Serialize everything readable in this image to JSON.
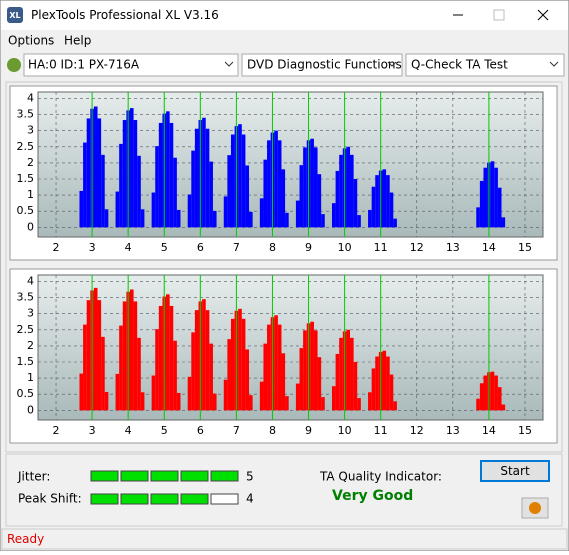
{
  "window": {
    "title": "PlexTools Professional XL V3.16"
  },
  "menu": [
    "Options",
    "Help"
  ],
  "toolbar": [
    "HA:0 ID:1  PX-716A",
    "DVD Diagnostic Functions",
    "Q-Check TA Test"
  ],
  "chart_data": [
    {
      "type": "bar",
      "color": "#0000ff",
      "x": [
        2.7,
        2.8,
        2.9,
        3,
        3.1,
        3.2,
        3.3,
        3.4,
        3.7,
        3.8,
        3.9,
        4,
        4.1,
        4.2,
        4.3,
        4.4,
        4.7,
        4.8,
        4.9,
        5,
        5.1,
        5.2,
        5.3,
        5.4,
        5.7,
        5.8,
        5.9,
        6,
        6.1,
        6.2,
        6.3,
        6.4,
        6.7,
        6.8,
        6.9,
        7,
        7.1,
        7.2,
        7.3,
        7.4,
        7.7,
        7.8,
        7.9,
        8,
        8.1,
        8.2,
        8.3,
        8.4,
        8.7,
        8.8,
        8.9,
        9,
        9.1,
        9.2,
        9.3,
        9.4,
        9.7,
        9.8,
        9.9,
        10,
        10.1,
        10.2,
        10.3,
        10.4,
        10.7,
        10.8,
        10.9,
        11,
        11.1,
        11.2,
        11.3,
        11.4,
        13.7,
        13.8,
        13.9,
        14,
        14.1,
        14.2,
        14.3,
        14.4
      ],
      "values": [
        1.13,
        2.63,
        3.38,
        3.68,
        3.75,
        3.38,
        2.25,
        0.56,
        1.11,
        2.59,
        3.33,
        3.63,
        3.7,
        3.33,
        2.22,
        0.56,
        1.08,
        2.52,
        3.24,
        3.53,
        3.6,
        3.24,
        2.16,
        0.54,
        1.02,
        2.38,
        3.06,
        3.33,
        3.4,
        3.06,
        2.04,
        0.51,
        0.96,
        2.24,
        2.88,
        3.14,
        3.2,
        2.88,
        1.92,
        0.48,
        0.9,
        2.1,
        2.7,
        2.94,
        3.0,
        2.7,
        1.8,
        0.45,
        0.83,
        1.93,
        2.48,
        2.7,
        2.75,
        2.48,
        1.65,
        0.41,
        0.75,
        1.75,
        2.25,
        2.45,
        2.5,
        2.25,
        1.5,
        0.38,
        0.54,
        1.26,
        1.62,
        1.76,
        1.8,
        1.62,
        1.08,
        0.27,
        0.62,
        1.44,
        1.85,
        2.01,
        2.05,
        1.85,
        1.23,
        0.31
      ],
      "markers": [
        3,
        4,
        5,
        6,
        7,
        8,
        9,
        10,
        11,
        14
      ],
      "marker_color": "#00d000",
      "xlim": [
        1.5,
        15.5
      ],
      "ylim": [
        -0.3,
        4.2
      ],
      "xticks": [
        2,
        3,
        4,
        5,
        6,
        7,
        8,
        9,
        10,
        11,
        12,
        13,
        14,
        15
      ],
      "yticks": [
        0,
        0.5,
        1,
        1.5,
        2,
        2.5,
        3,
        3.5,
        4
      ],
      "grid": true
    },
    {
      "type": "bar",
      "color": "#ff0000",
      "x": [
        2.7,
        2.8,
        2.9,
        3,
        3.1,
        3.2,
        3.3,
        3.4,
        3.7,
        3.8,
        3.9,
        4,
        4.1,
        4.2,
        4.3,
        4.4,
        4.7,
        4.8,
        4.9,
        5,
        5.1,
        5.2,
        5.3,
        5.4,
        5.7,
        5.8,
        5.9,
        6,
        6.1,
        6.2,
        6.3,
        6.4,
        6.7,
        6.8,
        6.9,
        7,
        7.1,
        7.2,
        7.3,
        7.4,
        7.7,
        7.8,
        7.9,
        8,
        8.1,
        8.2,
        8.3,
        8.4,
        8.7,
        8.8,
        8.9,
        9,
        9.1,
        9.2,
        9.3,
        9.4,
        9.7,
        9.8,
        9.9,
        10,
        10.1,
        10.2,
        10.3,
        10.4,
        10.7,
        10.8,
        10.9,
        11,
        11.1,
        11.2,
        11.3,
        11.4,
        13.7,
        13.8,
        13.9,
        14,
        14.1,
        14.2,
        14.3,
        14.4
      ],
      "values": [
        1.14,
        2.66,
        3.42,
        3.72,
        3.8,
        3.42,
        2.28,
        0.57,
        1.13,
        2.63,
        3.38,
        3.68,
        3.75,
        3.38,
        2.25,
        0.56,
        1.08,
        2.52,
        3.24,
        3.53,
        3.6,
        3.24,
        2.16,
        0.54,
        1.04,
        2.42,
        3.11,
        3.38,
        3.45,
        3.11,
        2.07,
        0.52,
        0.95,
        2.21,
        2.84,
        3.09,
        3.15,
        2.84,
        1.89,
        0.47,
        0.89,
        2.07,
        2.66,
        2.89,
        2.95,
        2.66,
        1.77,
        0.44,
        0.83,
        1.93,
        2.48,
        2.7,
        2.75,
        2.48,
        1.65,
        0.41,
        0.75,
        1.75,
        2.25,
        2.45,
        2.5,
        2.25,
        1.5,
        0.38,
        0.56,
        1.3,
        1.67,
        1.81,
        1.85,
        1.67,
        1.11,
        0.28,
        0.36,
        0.84,
        1.08,
        1.18,
        1.2,
        1.08,
        0.72,
        0.18
      ],
      "markers": [
        3,
        4,
        5,
        6,
        7,
        8,
        9,
        10,
        11,
        14
      ],
      "marker_color": "#00d000",
      "xlim": [
        1.5,
        15.5
      ],
      "ylim": [
        -0.3,
        4.2
      ],
      "xticks": [
        2,
        3,
        4,
        5,
        6,
        7,
        8,
        9,
        10,
        11,
        12,
        13,
        14,
        15
      ],
      "yticks": [
        0,
        0.5,
        1,
        1.5,
        2,
        2.5,
        3,
        3.5,
        4
      ],
      "grid": true
    }
  ],
  "indicators": [
    {
      "label": "Jitter:",
      "value": 5
    },
    {
      "label": "Peak Shift:",
      "value": 4
    }
  ],
  "ta_quality": {
    "label": "TA Quality Indicator:",
    "value": "Very Good"
  },
  "buttons": {
    "start": "Start"
  },
  "status": "Ready"
}
